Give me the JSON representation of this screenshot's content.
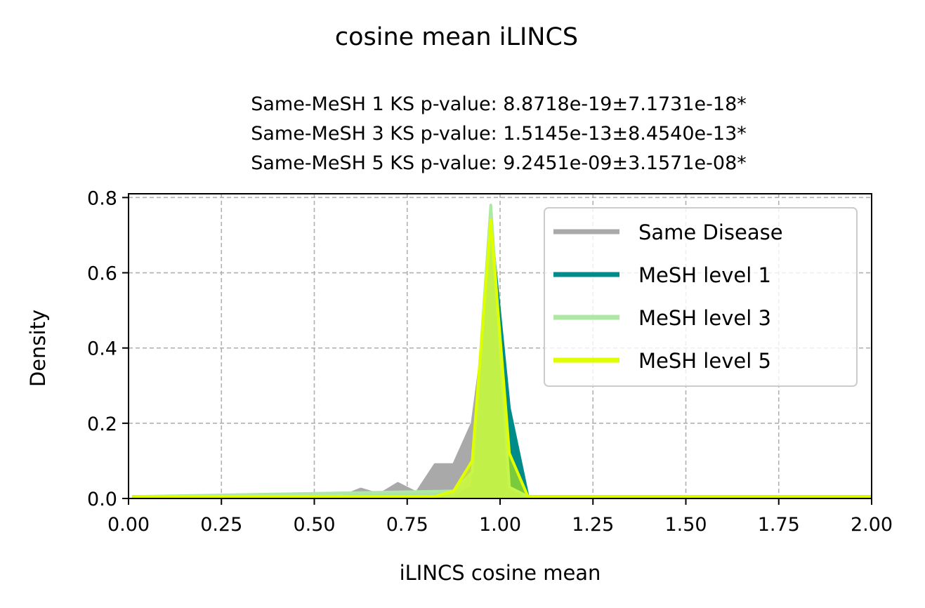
{
  "chart_data": {
    "type": "area",
    "title": "cosine mean iLINCS",
    "subtitle_lines": [
      "Same-MeSH 1 KS p-value: 8.8718e-19±7.1731e-18*",
      "Same-MeSH 3 KS p-value: 1.5145e-13±8.4540e-13*",
      "Same-MeSH 5 KS p-value: 9.2451e-09±3.1571e-08*"
    ],
    "xlabel": "iLINCS cosine mean",
    "ylabel": "Density",
    "xlim": [
      0,
      2
    ],
    "ylim": [
      0,
      0.81
    ],
    "xticks": [
      "0.00",
      "0.25",
      "0.50",
      "0.75",
      "1.00",
      "1.25",
      "1.50",
      "1.75",
      "2.00"
    ],
    "yticks": [
      "0.0",
      "0.2",
      "0.4",
      "0.6",
      "0.8"
    ],
    "grid": true,
    "legend_position": "top-right",
    "series": [
      {
        "name": "Same Disease",
        "color": "#a9a9a9",
        "fill_opacity": 1,
        "x": [
          0.01,
          0.575,
          0.625,
          0.675,
          0.725,
          0.775,
          0.825,
          0.875,
          0.925,
          0.975,
          1.025,
          1.075,
          1.125,
          2.0
        ],
        "y": [
          0.005,
          0.005,
          0.025,
          0.01,
          0.04,
          0.015,
          0.09,
          0.09,
          0.2,
          0.57,
          0.02,
          0.005,
          0.005,
          0.005
        ]
      },
      {
        "name": "MeSH level 1",
        "color": "#008b8b",
        "fill_opacity": 1,
        "x": [
          0.01,
          0.875,
          0.925,
          0.975,
          1.025,
          1.075,
          1.125,
          2.0
        ],
        "y": [
          0.005,
          0.005,
          0.03,
          0.73,
          0.24,
          0.005,
          0.005,
          0.005
        ]
      },
      {
        "name": "MeSH level 3",
        "color": "#aee8a4",
        "fill_opacity": 0.9,
        "x": [
          0.01,
          0.875,
          0.925,
          0.975,
          1.025,
          1.075,
          1.125,
          2.0
        ],
        "y": [
          0.005,
          0.02,
          0.07,
          0.78,
          0.03,
          0.005,
          0.005,
          0.005
        ]
      },
      {
        "name": "MeSH level 5",
        "color": "#dfff00",
        "fill_opacity": 0.55,
        "x": [
          0.01,
          0.825,
          0.875,
          0.925,
          0.975,
          1.025,
          1.075,
          1.125,
          2.0
        ],
        "y": [
          0.005,
          0.005,
          0.02,
          0.1,
          0.74,
          0.12,
          0.005,
          0.005,
          0.005
        ]
      }
    ]
  }
}
